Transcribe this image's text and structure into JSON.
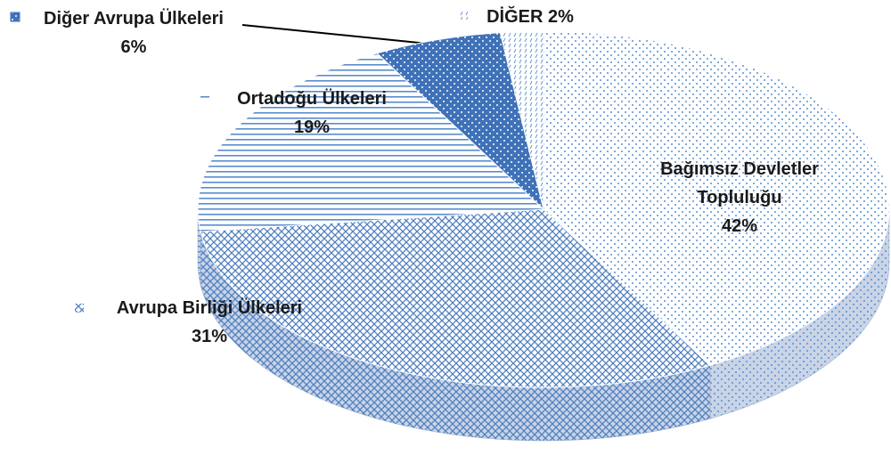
{
  "chart_data": {
    "type": "pie3d",
    "categories": [
      "Bağımsız Devletler Topluluğu",
      "Avrupa Birliği Ülkeleri",
      "Ortadoğu Ülkeleri",
      "Diğer Avrupa Ülkeleri",
      "DİĞER"
    ],
    "values": [
      42,
      31,
      19,
      6,
      2
    ],
    "value_labels": [
      "42%",
      "31%",
      "19%",
      "6%",
      "2%"
    ],
    "colors": [
      "#5b8fd0",
      "#4f7fc0",
      "#5a8ccc",
      "#3f72b8",
      "#6b98d2"
    ]
  }
}
